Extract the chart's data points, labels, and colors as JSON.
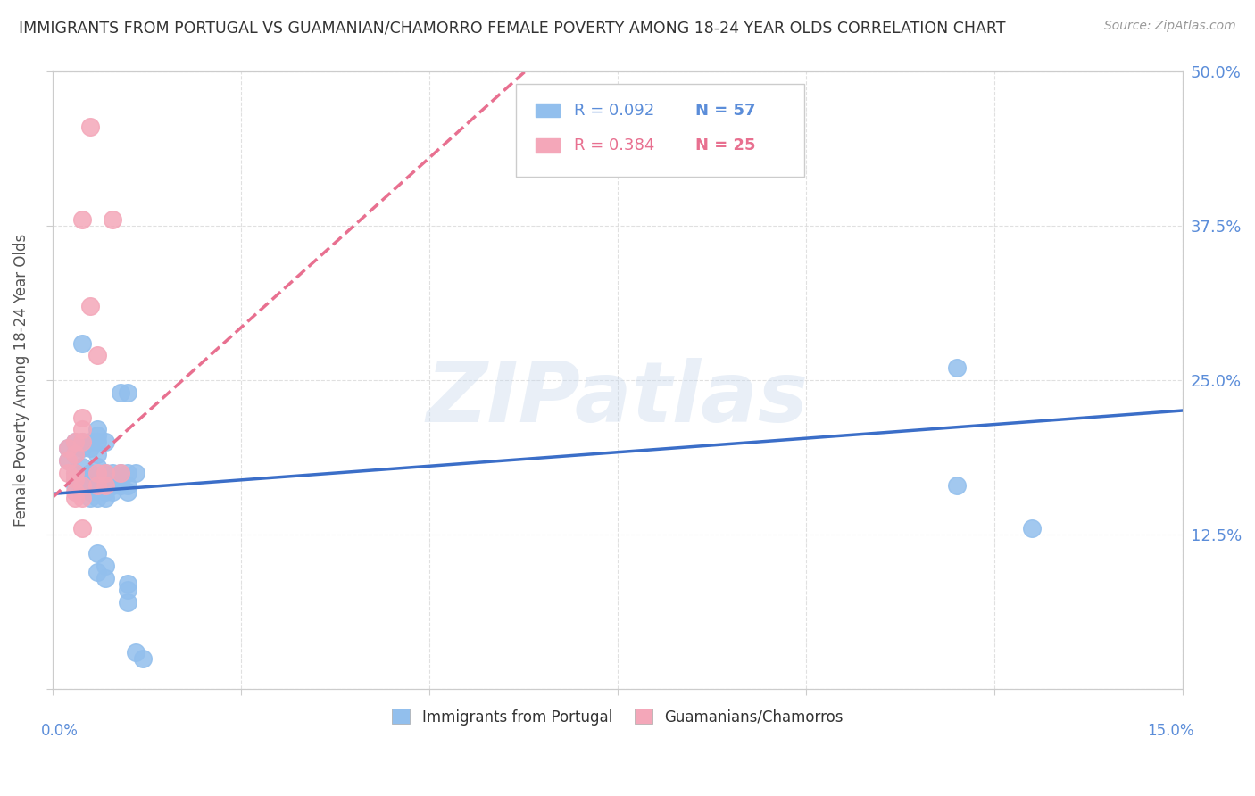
{
  "title": "IMMIGRANTS FROM PORTUGAL VS GUAMANIAN/CHAMORRO FEMALE POVERTY AMONG 18-24 YEAR OLDS CORRELATION CHART",
  "source": "Source: ZipAtlas.com",
  "ylabel": "Female Poverty Among 18-24 Year Olds",
  "watermark": "ZIPatlas",
  "blue_R": "R = 0.092",
  "blue_N": "N = 57",
  "pink_R": "R = 0.384",
  "pink_N": "N = 25",
  "blue_label": "Immigrants from Portugal",
  "pink_label": "Guamanians/Chamorros",
  "blue_color": "#92BFED",
  "pink_color": "#F4A7B9",
  "blue_line_color": "#3B6EC8",
  "pink_line_color": "#E87090",
  "blue_dots": [
    [
      0.002,
      0.195
    ],
    [
      0.002,
      0.185
    ],
    [
      0.003,
      0.2
    ],
    [
      0.003,
      0.19
    ],
    [
      0.003,
      0.175
    ],
    [
      0.003,
      0.17
    ],
    [
      0.003,
      0.165
    ],
    [
      0.004,
      0.28
    ],
    [
      0.004,
      0.2
    ],
    [
      0.004,
      0.195
    ],
    [
      0.004,
      0.18
    ],
    [
      0.004,
      0.17
    ],
    [
      0.004,
      0.165
    ],
    [
      0.005,
      0.2
    ],
    [
      0.005,
      0.195
    ],
    [
      0.005,
      0.175
    ],
    [
      0.005,
      0.17
    ],
    [
      0.005,
      0.16
    ],
    [
      0.005,
      0.155
    ],
    [
      0.006,
      0.21
    ],
    [
      0.006,
      0.205
    ],
    [
      0.006,
      0.2
    ],
    [
      0.006,
      0.19
    ],
    [
      0.006,
      0.18
    ],
    [
      0.006,
      0.17
    ],
    [
      0.006,
      0.165
    ],
    [
      0.006,
      0.155
    ],
    [
      0.006,
      0.11
    ],
    [
      0.006,
      0.095
    ],
    [
      0.007,
      0.2
    ],
    [
      0.007,
      0.175
    ],
    [
      0.007,
      0.17
    ],
    [
      0.007,
      0.16
    ],
    [
      0.007,
      0.155
    ],
    [
      0.007,
      0.1
    ],
    [
      0.007,
      0.09
    ],
    [
      0.008,
      0.175
    ],
    [
      0.008,
      0.17
    ],
    [
      0.008,
      0.165
    ],
    [
      0.008,
      0.16
    ],
    [
      0.009,
      0.24
    ],
    [
      0.009,
      0.175
    ],
    [
      0.009,
      0.17
    ],
    [
      0.009,
      0.165
    ],
    [
      0.01,
      0.24
    ],
    [
      0.01,
      0.175
    ],
    [
      0.01,
      0.165
    ],
    [
      0.01,
      0.16
    ],
    [
      0.01,
      0.085
    ],
    [
      0.01,
      0.08
    ],
    [
      0.01,
      0.07
    ],
    [
      0.011,
      0.175
    ],
    [
      0.011,
      0.03
    ],
    [
      0.012,
      0.025
    ],
    [
      0.12,
      0.26
    ],
    [
      0.12,
      0.165
    ],
    [
      0.13,
      0.13
    ]
  ],
  "pink_dots": [
    [
      0.002,
      0.195
    ],
    [
      0.002,
      0.185
    ],
    [
      0.002,
      0.175
    ],
    [
      0.003,
      0.2
    ],
    [
      0.003,
      0.19
    ],
    [
      0.003,
      0.175
    ],
    [
      0.003,
      0.17
    ],
    [
      0.003,
      0.16
    ],
    [
      0.003,
      0.155
    ],
    [
      0.004,
      0.38
    ],
    [
      0.004,
      0.22
    ],
    [
      0.004,
      0.21
    ],
    [
      0.004,
      0.2
    ],
    [
      0.004,
      0.165
    ],
    [
      0.004,
      0.155
    ],
    [
      0.004,
      0.13
    ],
    [
      0.005,
      0.455
    ],
    [
      0.005,
      0.31
    ],
    [
      0.006,
      0.27
    ],
    [
      0.006,
      0.175
    ],
    [
      0.006,
      0.165
    ],
    [
      0.007,
      0.175
    ],
    [
      0.007,
      0.165
    ],
    [
      0.008,
      0.38
    ],
    [
      0.009,
      0.175
    ]
  ],
  "xlim": [
    0.0,
    0.15
  ],
  "ylim": [
    0.0,
    0.5
  ],
  "blue_slope": 0.45,
  "blue_intercept": 0.158,
  "pink_slope": 5.5,
  "pink_intercept": 0.155,
  "grid_color": "#DDDDDD",
  "background_color": "#FFFFFF",
  "title_color": "#333333",
  "axis_color": "#5B8DD9",
  "tick_color": "#5B8DD9"
}
